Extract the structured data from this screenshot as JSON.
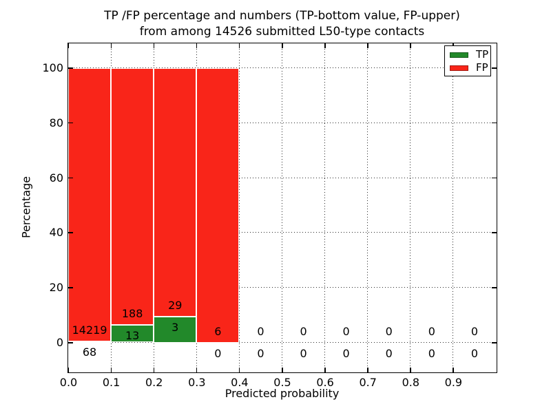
{
  "title": {
    "line1": "TP /FP percentage and numbers (TP-bottom value, FP-upper)",
    "line2": "from among 14526 submitted L50-type contacts"
  },
  "axes": {
    "xlabel": "Predicted probability",
    "ylabel": "Percentage",
    "x_tick_labels": [
      "0.0",
      "0.1",
      "0.2",
      "0.3",
      "0.4",
      "0.5",
      "0.6",
      "0.7",
      "0.8",
      "0.9"
    ],
    "x_tick_values": [
      0.0,
      0.1,
      0.2,
      0.3,
      0.4,
      0.5,
      0.6,
      0.7,
      0.8,
      0.9
    ],
    "y_tick_labels": [
      "0",
      "20",
      "40",
      "60",
      "80",
      "100"
    ],
    "y_tick_values": [
      0,
      20,
      40,
      60,
      80,
      100
    ],
    "xlim": [
      0.0,
      1.0
    ],
    "ylim": [
      -10,
      110
    ],
    "grid": "dotted"
  },
  "legend": {
    "position": "upper right",
    "items": [
      {
        "label": "TP",
        "color": "#22892a"
      },
      {
        "label": "FP",
        "color": "#f92519"
      }
    ]
  },
  "colors": {
    "tp_green": "#22892a",
    "fp_red": "#f92519",
    "bar_edge": "#ffffff",
    "text": "#000000",
    "spine": "#000000",
    "background": "#ffffff"
  },
  "chart_data": {
    "type": "bar",
    "stacked": true,
    "title": "TP /FP percentage and numbers (TP-bottom value, FP-upper)\nfrom among 14526 submitted L50-type contacts",
    "xlabel": "Predicted probability",
    "ylabel": "Percentage",
    "total_submitted": 14526,
    "bin_width": 0.1,
    "bin_starts": [
      0.0,
      0.1,
      0.2,
      0.3,
      0.4,
      0.5,
      0.6,
      0.7,
      0.8,
      0.9
    ],
    "series": [
      {
        "name": "TP",
        "color": "#22892a",
        "counts": [
          68,
          13,
          3,
          0,
          0,
          0,
          0,
          0,
          0,
          0
        ],
        "percent": [
          0.48,
          6.47,
          9.38,
          0,
          0,
          0,
          0,
          0,
          0,
          0
        ]
      },
      {
        "name": "FP",
        "color": "#f92519",
        "counts": [
          14219,
          188,
          29,
          6,
          0,
          0,
          0,
          0,
          0,
          0
        ],
        "percent": [
          99.52,
          93.53,
          90.62,
          100,
          0,
          0,
          0,
          0,
          0,
          0
        ]
      }
    ],
    "label_note": "FP count printed above TP bar top, TP count printed below it",
    "ylim": [
      -10,
      110
    ],
    "xlim": [
      0.0,
      1.0
    ],
    "grid": "dotted",
    "legend_position": "upper right"
  }
}
